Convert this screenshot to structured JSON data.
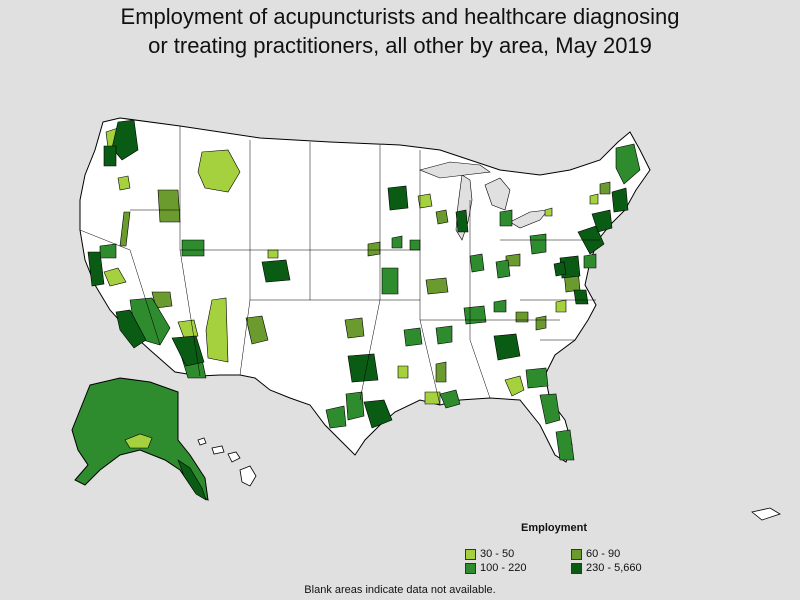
{
  "title_line1": "Employment of acupuncturists and healthcare diagnosing",
  "title_line2": "or treating practitioners, all other by area, May 2019",
  "legend": {
    "title": "Employment",
    "items": [
      {
        "label": "30 - 50",
        "color": "#a6d13f"
      },
      {
        "label": "60 - 90",
        "color": "#6b9a2e"
      },
      {
        "label": "100 - 220",
        "color": "#2e8b2e"
      },
      {
        "label": "230 - 5,660",
        "color": "#0a5c14"
      }
    ]
  },
  "footnote": "Blank areas indicate data not available.",
  "colors": {
    "background": "#e0e0e0",
    "land": "#ffffff",
    "border": "#000000"
  }
}
